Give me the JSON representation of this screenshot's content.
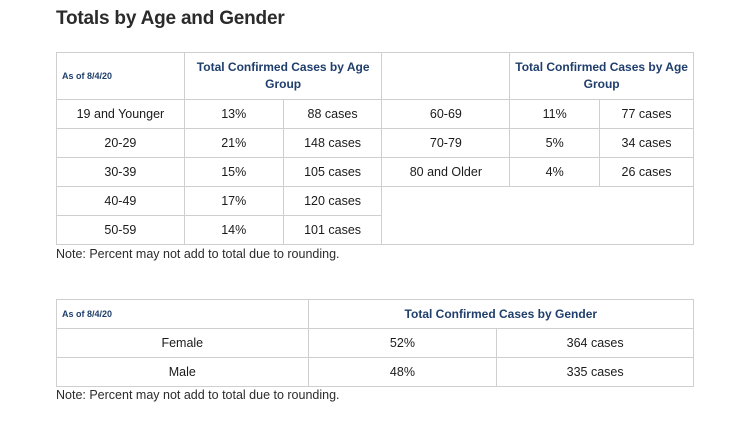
{
  "title": "Totals by Age and Gender",
  "age_table": {
    "as_of": "As of 8/4/20",
    "header_left": "Total Confirmed Cases by Age Group",
    "header_right": "Total Confirmed Cases by Age Group",
    "left_rows": [
      {
        "group": "19 and Younger",
        "percent": "13%",
        "cases": "88 cases"
      },
      {
        "group": "20-29",
        "percent": "21%",
        "cases": "148 cases"
      },
      {
        "group": "30-39",
        "percent": "15%",
        "cases": "105 cases"
      },
      {
        "group": "40-49",
        "percent": "17%",
        "cases": "120 cases"
      },
      {
        "group": "50-59",
        "percent": "14%",
        "cases": "101 cases"
      }
    ],
    "right_rows": [
      {
        "group": "60-69",
        "percent": "11%",
        "cases": "77 cases"
      },
      {
        "group": "70-79",
        "percent": "5%",
        "cases": "34 cases"
      },
      {
        "group": "80 and Older",
        "percent": "4%",
        "cases": "26 cases"
      }
    ],
    "note": "Note: Percent may not add to total due to rounding."
  },
  "gender_table": {
    "as_of": "As of 8/4/20",
    "header": "Total Confirmed Cases by Gender",
    "rows": [
      {
        "gender": "Female",
        "percent": "52%",
        "cases": "364 cases"
      },
      {
        "gender": "Male",
        "percent": "48%",
        "cases": "335 cases"
      }
    ],
    "note": "Note: Percent may not add to total due to rounding."
  }
}
